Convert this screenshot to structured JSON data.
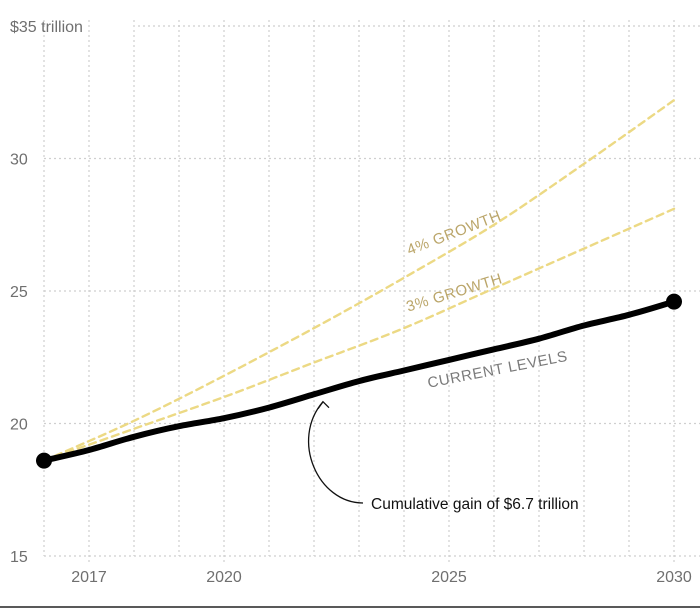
{
  "chart_data": {
    "type": "line",
    "y_unit_label": "$35 trillion",
    "ylim": [
      15,
      35
    ],
    "xlim": [
      2016,
      2030
    ],
    "y_ticks": [
      {
        "value": 35,
        "label": "$35 trillion"
      },
      {
        "value": 30,
        "label": "30"
      },
      {
        "value": 25,
        "label": "25"
      },
      {
        "value": 20,
        "label": "20"
      },
      {
        "value": 15,
        "label": "15"
      }
    ],
    "x_ticks": [
      {
        "value": 2017,
        "label": "2017"
      },
      {
        "value": 2020,
        "label": "2020"
      },
      {
        "value": 2025,
        "label": "2025"
      },
      {
        "value": 2030,
        "label": "2030"
      }
    ],
    "grid": "dotted, one vertical line per year",
    "series": [
      {
        "name": "4% GROWTH",
        "style": "dashed",
        "color": "#ecd984",
        "label_color": "#bba66a",
        "x": [
          2016,
          2018,
          2020,
          2022,
          2024,
          2026,
          2028,
          2030
        ],
        "values": [
          18.6,
          20.1,
          21.8,
          23.6,
          25.5,
          27.5,
          29.8,
          32.2
        ]
      },
      {
        "name": "3% GROWTH",
        "style": "dashed",
        "color": "#ecd984",
        "label_color": "#bba66a",
        "x": [
          2016,
          2018,
          2020,
          2022,
          2024,
          2026,
          2028,
          2030
        ],
        "values": [
          18.6,
          19.8,
          21.0,
          22.3,
          23.6,
          25.1,
          26.6,
          28.1
        ]
      },
      {
        "name": "CURRENT LEVELS",
        "style": "solid",
        "color": "#000000",
        "label_color": "#7a7a7a",
        "x": [
          2016,
          2017,
          2018,
          2019,
          2020,
          2021,
          2022,
          2023,
          2024,
          2025,
          2026,
          2027,
          2028,
          2029,
          2030
        ],
        "values": [
          18.6,
          19.0,
          19.5,
          19.9,
          20.2,
          20.6,
          21.1,
          21.6,
          22.0,
          22.4,
          22.8,
          23.2,
          23.7,
          24.1,
          24.6
        ],
        "endpoints": [
          {
            "x": 2016,
            "y": 18.6
          },
          {
            "x": 2030,
            "y": 24.6
          }
        ]
      }
    ],
    "annotations": [
      {
        "text": "Cumulative gain of $6.7 trillion",
        "points_to": {
          "x": 2022.2,
          "y": 21.2
        }
      }
    ]
  }
}
